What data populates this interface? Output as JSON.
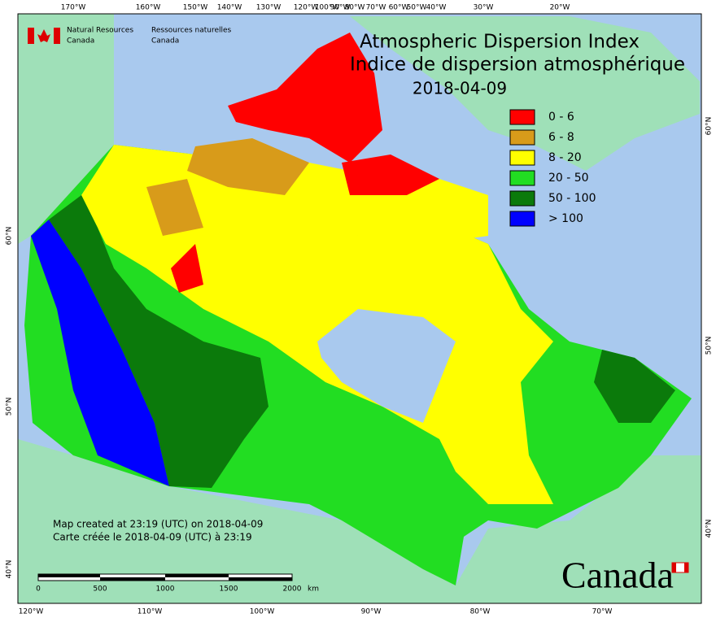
{
  "header": {
    "org_en": [
      "Natural Resources",
      "Canada"
    ],
    "org_fr": [
      "Ressources naturelles",
      "Canada"
    ]
  },
  "title": {
    "en": "Atmospheric Dispersion Index",
    "fr": "Indice de dispersion atmosphérique",
    "date": "2018-04-09"
  },
  "legend": [
    {
      "label": "0 - 6",
      "color": "#ff0000"
    },
    {
      "label": "6 - 8",
      "color": "#d89b1a"
    },
    {
      "label": "8 - 20",
      "color": "#ffff00"
    },
    {
      "label": "20 - 50",
      "color": "#22dd22"
    },
    {
      "label": "50 - 100",
      "color": "#0b7a0b"
    },
    {
      "label": "> 100",
      "color": "#0000ff"
    }
  ],
  "graticule": {
    "top": [
      "170°W",
      "160°W",
      "150°W",
      "140°W",
      "130°W",
      "120°W",
      "100°W",
      "90°W",
      "80°W",
      "70°W",
      "60°W",
      "50°W",
      "40°W",
      "30°W",
      "20°W"
    ],
    "bottom": [
      "120°W",
      "110°W",
      "100°W",
      "90°W",
      "80°W",
      "70°W"
    ],
    "left": [
      "60°N",
      "50°N",
      "40°N"
    ],
    "right": [
      "60°N",
      "50°N",
      "40°N"
    ]
  },
  "scale": {
    "ticks": [
      "0",
      "500",
      "1000",
      "1500",
      "2000"
    ],
    "unit": "km"
  },
  "footer": {
    "line1": "Map created at 23:19 (UTC) on 2018-04-09",
    "line2": "Carte créée le 2018-04-09 (UTC) à 23:19"
  },
  "wordmark": "Canada"
}
